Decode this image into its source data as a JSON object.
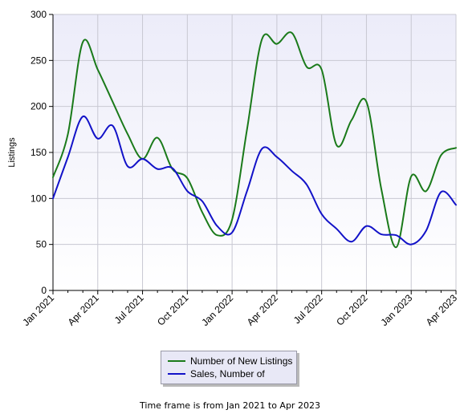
{
  "chart_data": {
    "type": "line",
    "ylabel": "Listings",
    "ylim": [
      0,
      300
    ],
    "yticks": [
      0,
      50,
      100,
      150,
      200,
      250,
      300
    ],
    "xtick_labels": [
      "Jan 2021",
      "Apr 2021",
      "Jul 2021",
      "Oct 2021",
      "Jan 2022",
      "Apr 2022",
      "Jul 2022",
      "Oct 2022",
      "Jan 2023",
      "Apr 2023"
    ],
    "x": [
      "Jan 2021",
      "Feb 2021",
      "Mar 2021",
      "Apr 2021",
      "May 2021",
      "Jun 2021",
      "Jul 2021",
      "Aug 2021",
      "Sep 2021",
      "Oct 2021",
      "Nov 2021",
      "Dec 2021",
      "Jan 2022",
      "Feb 2022",
      "Mar 2022",
      "Apr 2022",
      "May 2022",
      "Jun 2022",
      "Jul 2022",
      "Aug 2022",
      "Sep 2022",
      "Oct 2022",
      "Nov 2022",
      "Dec 2022",
      "Jan 2023",
      "Feb 2023",
      "Mar 2023",
      "Apr 2023"
    ],
    "series": [
      {
        "name": "Number of New Listings",
        "color": "#1a7a1a",
        "values": [
          123,
          170,
          270,
          240,
          205,
          170,
          143,
          166,
          132,
          122,
          85,
          60,
          77,
          175,
          273,
          268,
          280,
          243,
          240,
          158,
          185,
          205,
          110,
          47,
          124,
          108,
          147,
          155
        ]
      },
      {
        "name": "Sales, Number of",
        "color": "#1212c8",
        "values": [
          100,
          145,
          189,
          165,
          179,
          135,
          143,
          132,
          133,
          108,
          97,
          70,
          63,
          108,
          154,
          145,
          130,
          115,
          83,
          67,
          53,
          70,
          61,
          60,
          50,
          65,
          107,
          93
        ]
      }
    ],
    "grid": true,
    "legend": "bottom-center"
  },
  "footer": {
    "timeframe": "Time frame is from Jan 2021 to Apr 2023"
  }
}
